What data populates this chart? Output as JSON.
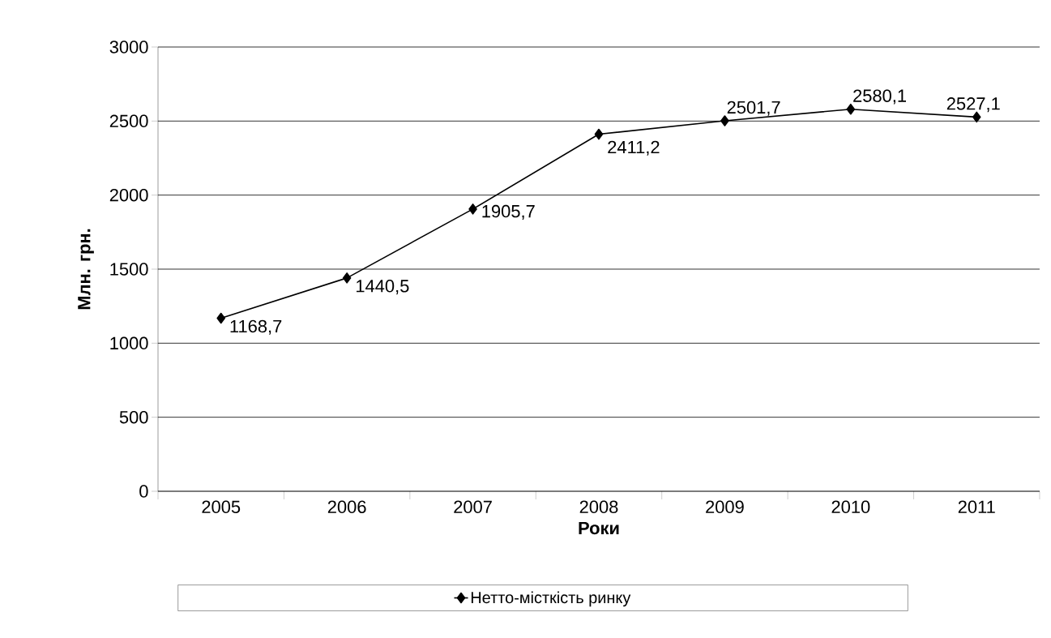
{
  "chart_data": {
    "type": "line",
    "xlabel": "Роки",
    "ylabel": "Млн. грн.",
    "categories": [
      "2005",
      "2006",
      "2007",
      "2008",
      "2009",
      "2010",
      "2011"
    ],
    "series": [
      {
        "name": "Нетто-місткість ринку",
        "color": "#000000",
        "values": [
          1168.7,
          1440.5,
          1905.7,
          2411.2,
          2501.7,
          2580.1,
          2527.1
        ],
        "value_labels": [
          "1168,7",
          "1440,5",
          "1905,7",
          "2411,2",
          "2501,7",
          "2580,1",
          "2527,1"
        ]
      }
    ],
    "ylim": [
      0,
      3000
    ],
    "yticks": [
      0,
      500,
      1000,
      1500,
      2000,
      2500,
      3000
    ],
    "grid": "y",
    "legend": "bottom",
    "marker": "diamond",
    "line_style": "solid"
  }
}
